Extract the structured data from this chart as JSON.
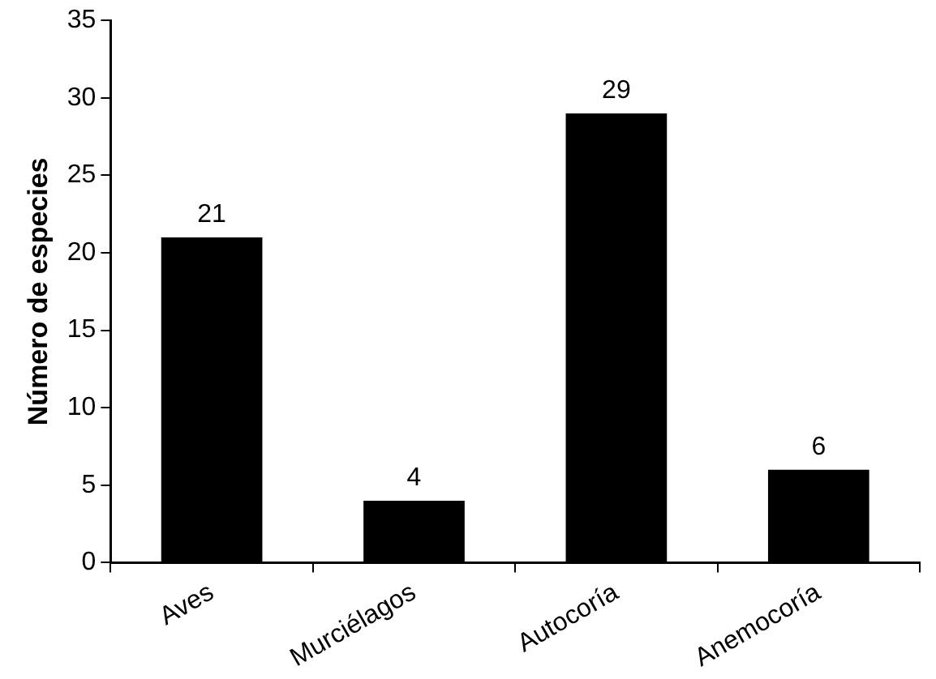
{
  "chart_data": {
    "type": "bar",
    "ylabel": "Número de especies",
    "categories": [
      "Aves",
      "Murciélagos",
      "Autocoría",
      "Anemocoría"
    ],
    "values": [
      21,
      4,
      29,
      6
    ],
    "color": "#000000",
    "ylim": [
      0,
      35
    ],
    "yticks": [
      0,
      5,
      10,
      15,
      20,
      25,
      30,
      35
    ],
    "grid": false,
    "legend": false,
    "data_labels": true
  }
}
